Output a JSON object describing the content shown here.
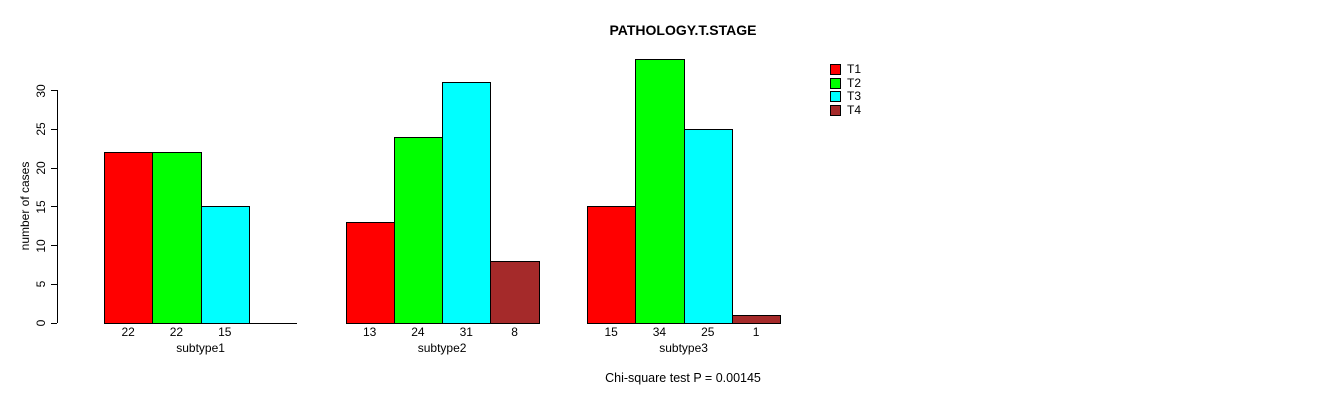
{
  "chart_data": {
    "type": "bar",
    "title": "PATHOLOGY.T.STAGE",
    "ylabel": "number of cases",
    "xlabel": "",
    "footer": "Chi-square test P = 0.00145",
    "categories": [
      "subtype1",
      "subtype2",
      "subtype3"
    ],
    "series": [
      {
        "name": "T1",
        "color": "#FF0000",
        "values": [
          22,
          13,
          15
        ]
      },
      {
        "name": "T2",
        "color": "#00FF00",
        "values": [
          22,
          24,
          34
        ]
      },
      {
        "name": "T3",
        "color": "#00FFFF",
        "values": [
          15,
          31,
          25
        ]
      },
      {
        "name": "T4",
        "color": "#A52A2A",
        "values": [
          0,
          8,
          1
        ]
      }
    ],
    "y_ticks": [
      0,
      5,
      10,
      15,
      20,
      25,
      30
    ],
    "ylim": [
      0,
      30
    ],
    "bar_value_labels": [
      [
        "22",
        "22",
        "15",
        ""
      ],
      [
        "13",
        "24",
        "31",
        "8"
      ],
      [
        "15",
        "34",
        "25",
        "1"
      ]
    ],
    "grid": false,
    "legend_position": "top-right",
    "background_color": "#FFFFFF",
    "text_color": "#000000"
  }
}
